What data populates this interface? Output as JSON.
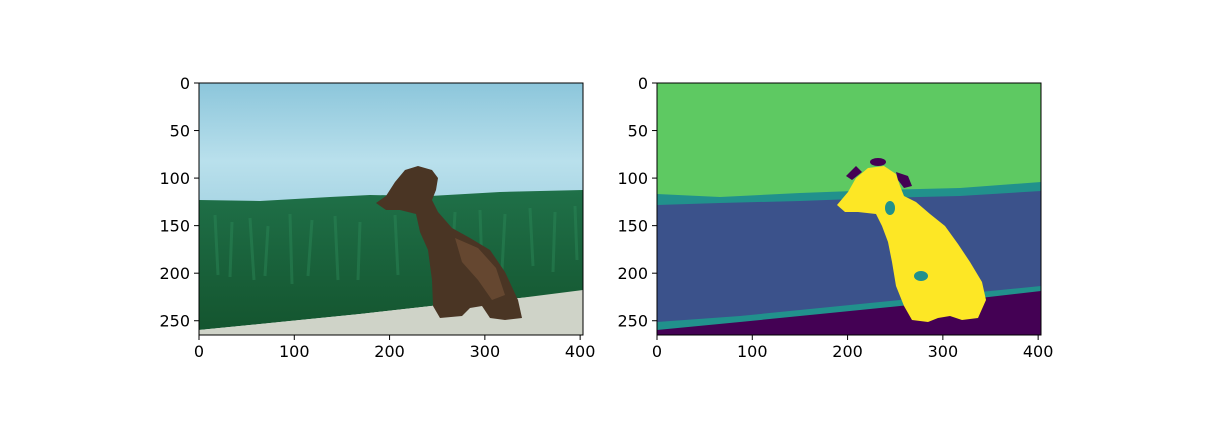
{
  "figure": {
    "panels": [
      {
        "id": "photo",
        "image_kind": "photograph",
        "content": "brown dog sitting on a grass bank with sky above and gravel below",
        "colors": {
          "sky": "#9ccfe0",
          "sky_light": "#bfe3ee",
          "grass": "#1f6b45",
          "grass_dark": "#14502f",
          "gravel": "#cfd3c8",
          "dog": "#4a3524",
          "dog_light": "#6b4c33"
        }
      },
      {
        "id": "segmentation",
        "image_kind": "segmentation-mask",
        "content": "segmentation mask of the same photo",
        "colors": {
          "sky": "#5ec962",
          "grass": "#3b528b",
          "boundary": "#21918c",
          "gravel": "#440154",
          "dog": "#fde725"
        }
      }
    ],
    "axes": {
      "xlim": [
        0,
        403
      ],
      "ylim": [
        265,
        0
      ],
      "xticks": [
        0,
        100,
        200,
        300,
        400
      ],
      "yticks": [
        0,
        50,
        100,
        150,
        200,
        250
      ],
      "xtick_labels": [
        "0",
        "100",
        "200",
        "300",
        "400"
      ],
      "ytick_labels": [
        "0",
        "50",
        "100",
        "150",
        "200",
        "250"
      ]
    }
  }
}
